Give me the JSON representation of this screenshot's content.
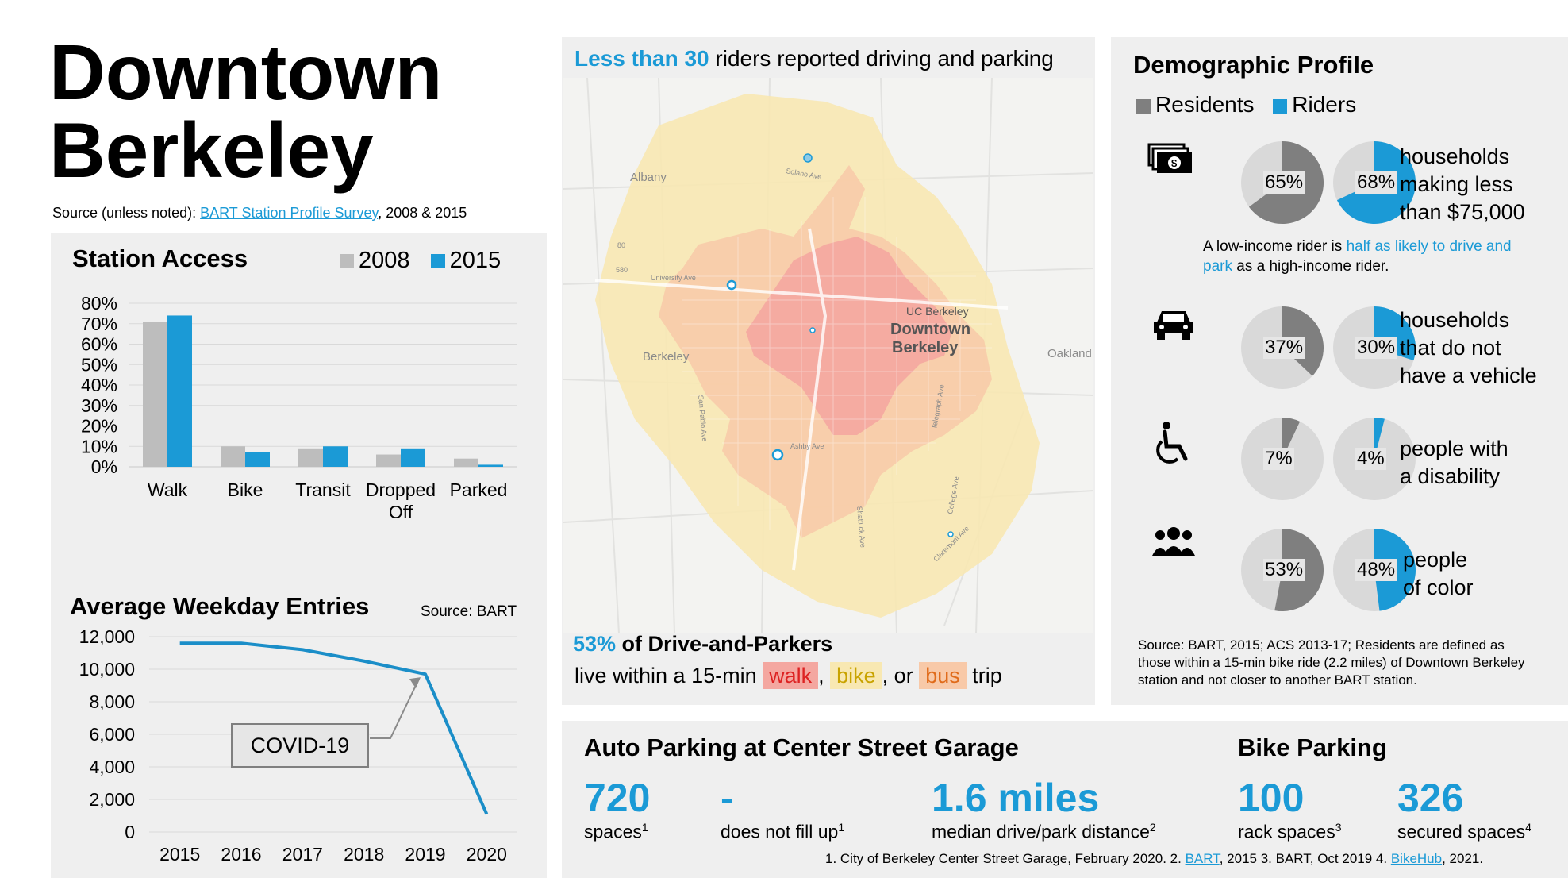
{
  "title_line1": "Downtown",
  "title_line2": "Berkeley",
  "source": {
    "prefix": "Source (unless noted): ",
    "link": "BART Station Profile Survey",
    "suffix": ", 2008 & 2015"
  },
  "station_access": {
    "title": "Station Access",
    "legend": [
      {
        "label": "2008",
        "color": "#bdbdbd"
      },
      {
        "label": "2015",
        "color": "#1b9ad6"
      }
    ]
  },
  "entries": {
    "title": "Average Weekday Entries",
    "source": "Source: BART",
    "annotation": "COVID-19"
  },
  "map": {
    "headline_hl": "Less than 30",
    "headline_rest": " riders reported driving and parking",
    "places": [
      "Albany",
      "Berkeley",
      "Oakland",
      "UC Berkeley",
      "Solano Ave",
      "University Ave",
      "San Pablo Ave",
      "Ashby Ave",
      "Telegraph Ave",
      "College Ave",
      "Shattuck Ave",
      "Claremont Ave"
    ],
    "station_label_1": "Downtown",
    "station_label_2": "Berkeley",
    "hwy_80": "80",
    "hwy_580": "580",
    "stat_hl": "53%",
    "stat_rest": " of Drive-and-Parkers",
    "trip_prefix": "live within a 15-min ",
    "walk": "walk",
    "comma": ",",
    "bike": "bike",
    "or": ", or ",
    "bus": "bus",
    "trip": " trip",
    "colors": {
      "walk": "#f4a7a0",
      "bike": "#f8e8b2",
      "bus": "#f8c9a8"
    }
  },
  "demographics": {
    "title": "Demographic Profile",
    "legend": [
      {
        "label": "Residents",
        "color": "#7f7f7f"
      },
      {
        "label": "Riders",
        "color": "#1b9ad6"
      }
    ],
    "rows": [
      {
        "icon": "money-icon",
        "residents": "65%",
        "riders": "68%",
        "residents_value": 65,
        "riders_value": 68,
        "desc": [
          "households",
          "making less",
          "than $75,000"
        ]
      },
      {
        "icon": "car-icon",
        "residents": "37%",
        "riders": "30%",
        "residents_value": 37,
        "riders_value": 30,
        "desc": [
          "households",
          "that do not",
          "have a vehicle"
        ]
      },
      {
        "icon": "wheelchair-icon",
        "residents": "7%",
        "riders": "4%",
        "residents_value": 7,
        "riders_value": 4,
        "desc": [
          "people with",
          "a disability"
        ]
      },
      {
        "icon": "people-icon",
        "residents": "53%",
        "riders": "48%",
        "residents_value": 53,
        "riders_value": 48,
        "desc": [
          "people",
          "of color"
        ]
      }
    ],
    "note": {
      "pre": "A low-income rider is ",
      "hl": "half as likely to drive and park",
      "post": " as a high-income rider."
    },
    "source": "Source: BART, 2015; ACS 2013-17; Residents are defined as those within a 15-min bike ride (2.2 miles) of Downtown Berkeley station and not closer to another BART station."
  },
  "parking": {
    "auto_title": "Auto Parking at Center Street Garage",
    "bike_title": "Bike Parking",
    "stats": [
      {
        "value": "720",
        "label": "spaces",
        "note": "1"
      },
      {
        "value": "-",
        "label": "does not fill up",
        "note": "1"
      },
      {
        "value": "1.6 miles",
        "label": "median drive/park distance",
        "note": "2"
      },
      {
        "value": "100",
        "label": "rack spaces",
        "note": "3"
      },
      {
        "value": "326",
        "label": "secured spaces",
        "note": "4"
      }
    ],
    "footnote": {
      "p1": "1. City of Berkeley Center Street Garage, February 2020. 2. ",
      "l1": "BART",
      "p2": ", 2015 3. BART, Oct 2019 4. ",
      "l2": "BikeHub",
      "p3": ", 2021."
    }
  },
  "chart_data": [
    {
      "type": "bar",
      "title": "Station Access",
      "categories": [
        "Walk",
        "Bike",
        "Transit",
        "Dropped Off",
        "Parked"
      ],
      "series": [
        {
          "name": "2008",
          "values": [
            71,
            10,
            9,
            6,
            4
          ]
        },
        {
          "name": "2015",
          "values": [
            74,
            7,
            10,
            9,
            1
          ]
        }
      ],
      "y_ticks": [
        "0%",
        "10%",
        "20%",
        "30%",
        "40%",
        "50%",
        "60%",
        "70%",
        "80%"
      ],
      "ylim": [
        0,
        80
      ],
      "legend": "top-right",
      "grid": true
    },
    {
      "type": "line",
      "title": "Average Weekday Entries",
      "x": [
        "2015",
        "2016",
        "2017",
        "2018",
        "2019",
        "2020"
      ],
      "y": [
        11600,
        11600,
        11200,
        10500,
        9700,
        1100
      ],
      "y_ticks": [
        "0",
        "2,000",
        "4,000",
        "6,000",
        "8,000",
        "10,000",
        "12,000"
      ],
      "ylim": [
        0,
        12000
      ],
      "grid": true
    }
  ]
}
